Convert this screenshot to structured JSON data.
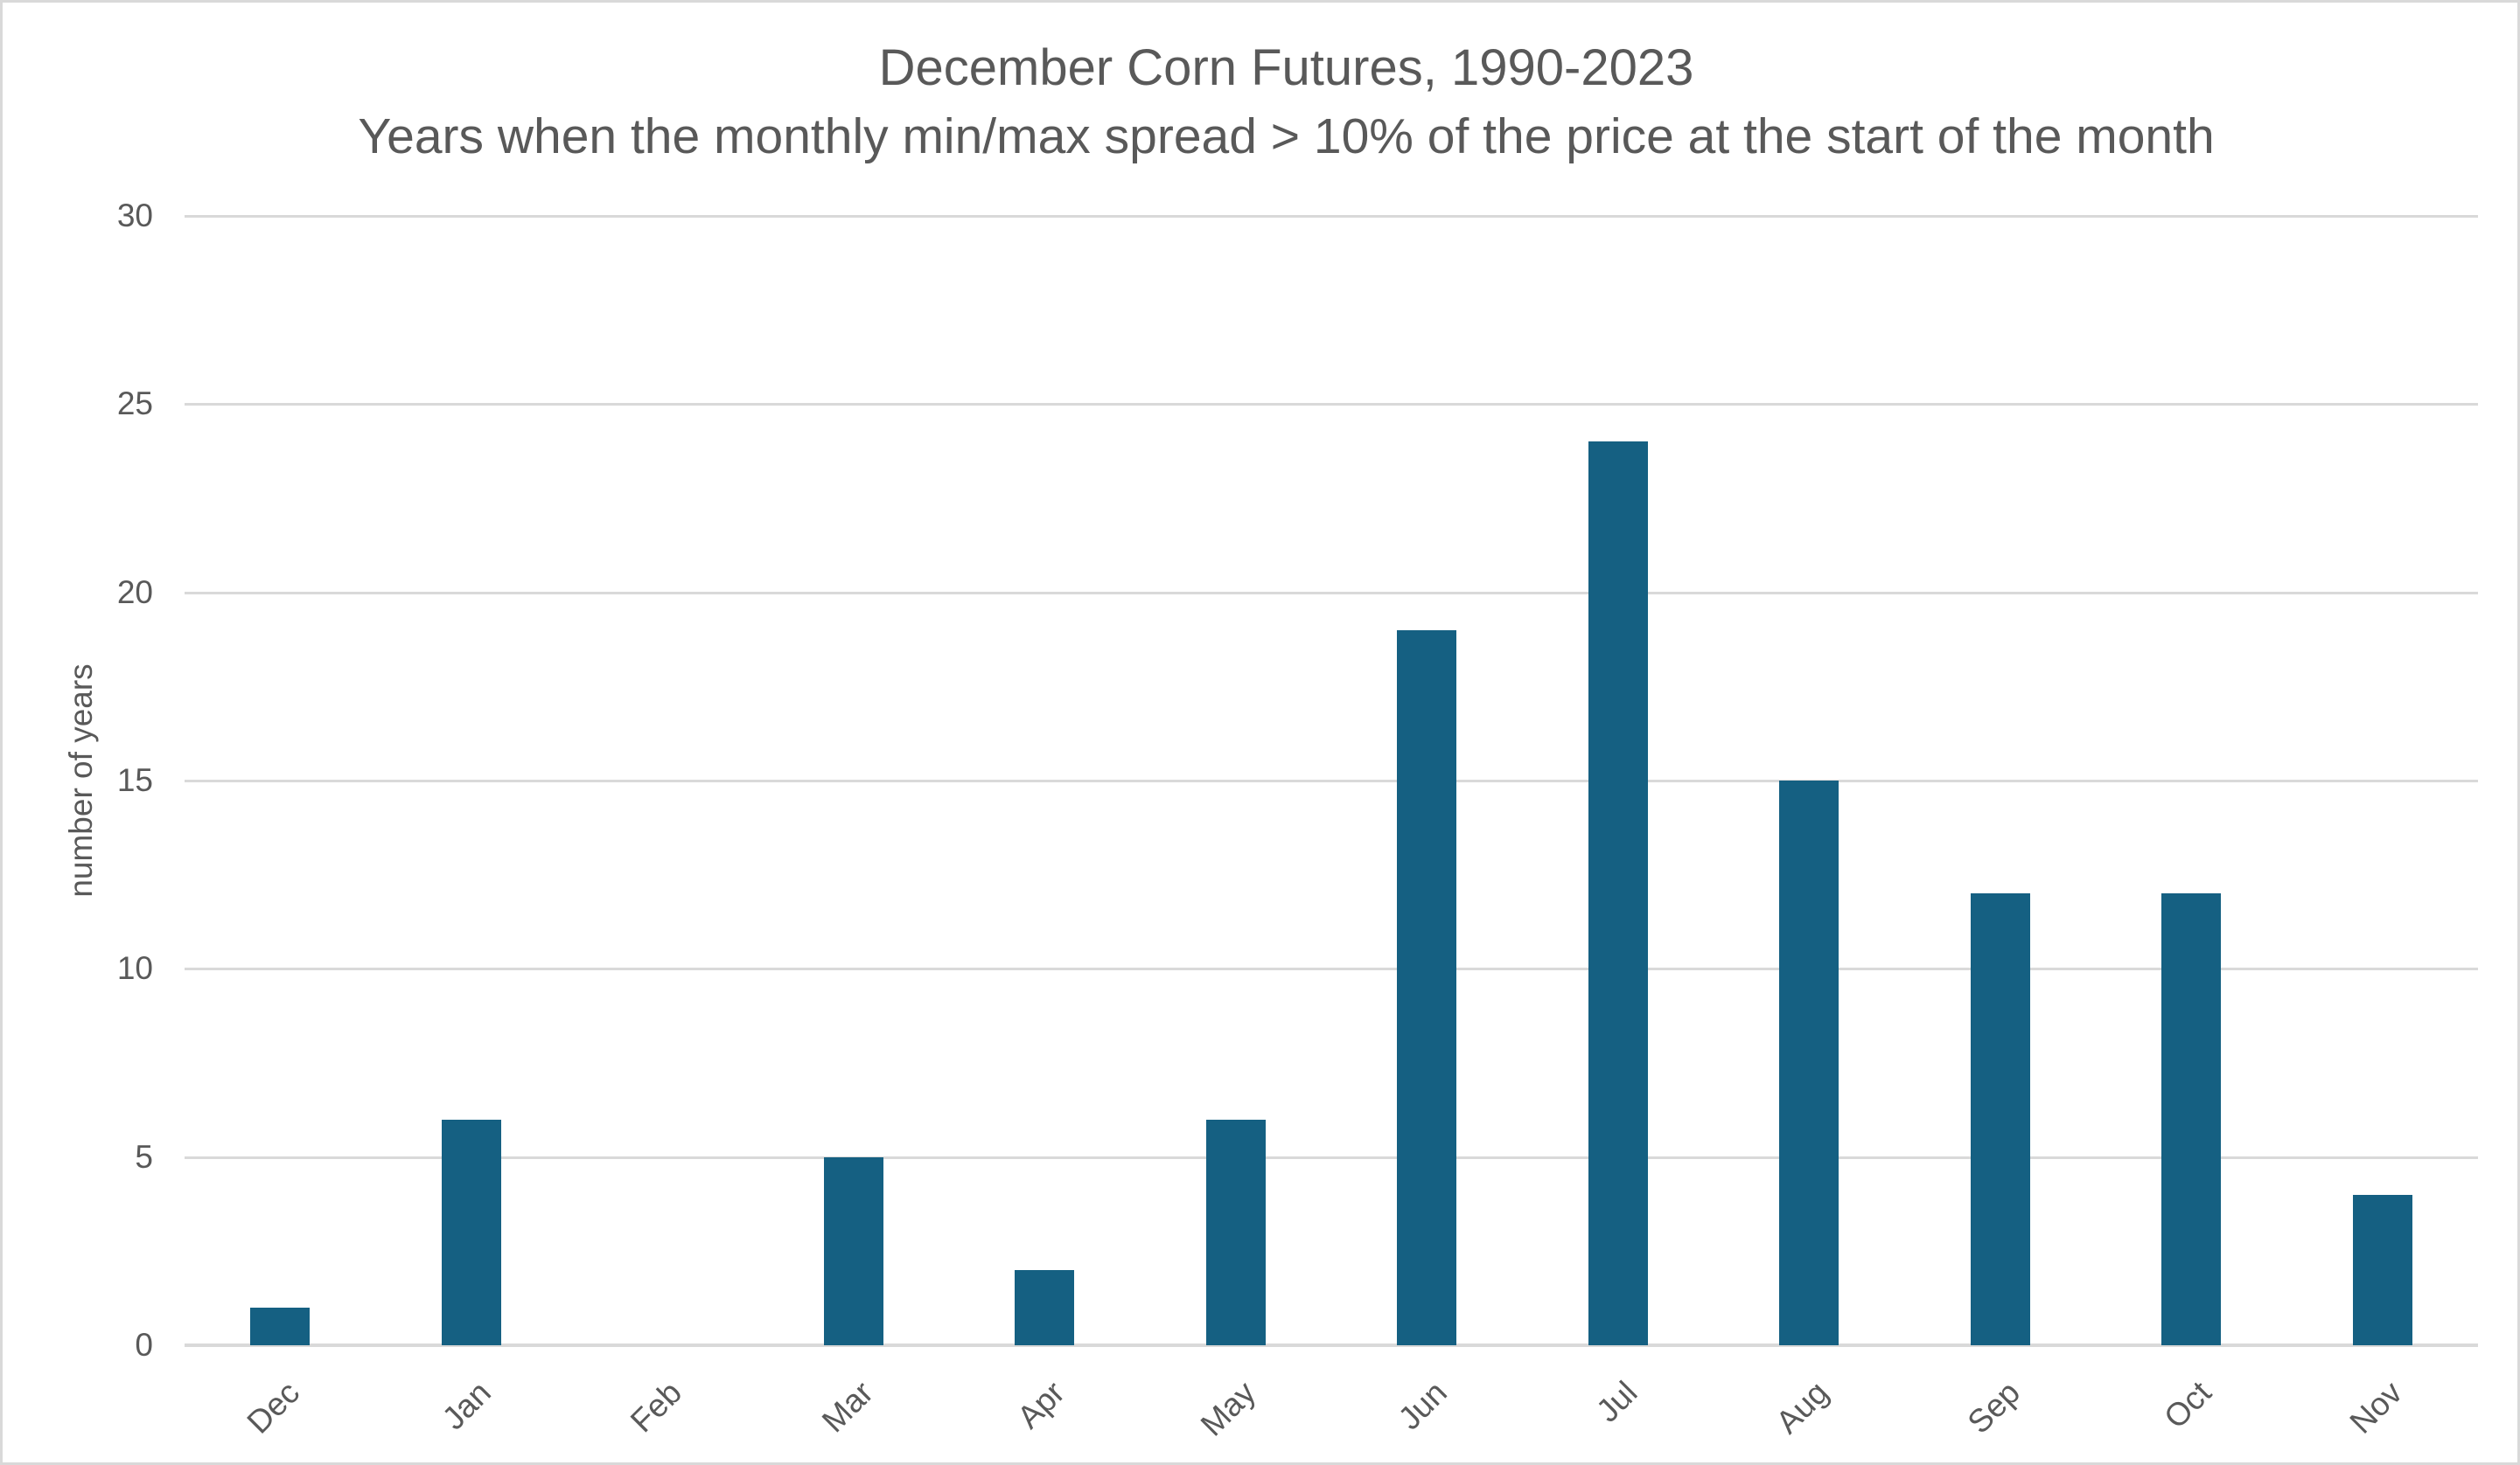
{
  "chart": {
    "title": "December Corn Futures, 1990-2023",
    "subtitle": "Years when the monthly min/max spread > 10% of the price at the start of the month",
    "y_axis_title": "number of years"
  },
  "chart_data": {
    "type": "bar",
    "title": "December Corn Futures, 1990-2023",
    "subtitle": "Years when the monthly min/max spread > 10% of the price at the start of the month",
    "categories": [
      "Dec",
      "Jan",
      "Feb",
      "Mar",
      "Apr",
      "May",
      "Jun",
      "Jul",
      "Aug",
      "Sep",
      "Oct",
      "Nov"
    ],
    "values": [
      1,
      6,
      0,
      5,
      2,
      6,
      19,
      24,
      15,
      12,
      12,
      4
    ],
    "xlabel": "",
    "ylabel": "number of years",
    "ylim": [
      0,
      30
    ],
    "yticks": [
      0,
      5,
      10,
      15,
      20,
      25,
      30
    ],
    "grid": true,
    "legend_position": "none",
    "x_label_rotation_deg": 45,
    "colors": {
      "bar_fill": "#156082",
      "text": "#595959",
      "gridline": "#d9d9d9",
      "axis_line": "#d9d9d9",
      "background": "#ffffff",
      "canvas_border": "#d9d9d9"
    }
  }
}
